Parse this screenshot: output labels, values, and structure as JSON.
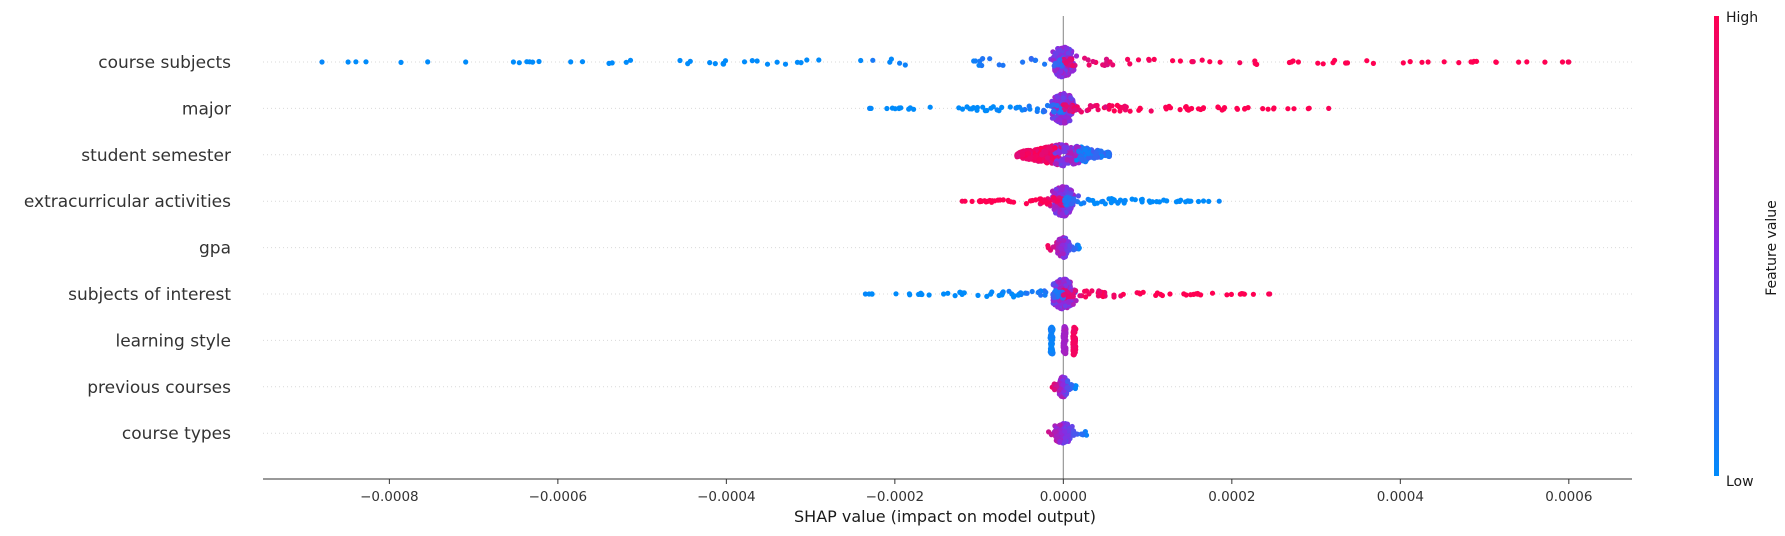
{
  "chart_data": {
    "type": "scatter",
    "subtype": "shap-beeswarm",
    "title": "",
    "xlabel": "SHAP value (impact on model output)",
    "xlim": [
      -0.00095,
      0.000675
    ],
    "x_ticks": [
      -0.0008,
      -0.0006,
      -0.0004,
      -0.0002,
      0.0,
      0.0002,
      0.0004,
      0.0006
    ],
    "x_tick_labels": [
      "−0.0008",
      "−0.0006",
      "−0.0004",
      "−0.0002",
      "0.0000",
      "0.0002",
      "0.0004",
      "0.0006"
    ],
    "features": [
      "course subjects",
      "major",
      "student semester",
      "extracurricular activities",
      "gpa",
      "subjects of interest",
      "learning style",
      "previous courses",
      "course types"
    ],
    "feature_spread": [
      {
        "name": "course subjects",
        "min": -0.00088,
        "max": 0.0006,
        "dense_core": [
          -1e-05,
          1e-05
        ]
      },
      {
        "name": "major",
        "min": -0.00023,
        "max": 0.000315,
        "dense_core": [
          -5e-06,
          5e-06
        ]
      },
      {
        "name": "student semester",
        "min": -5.5e-05,
        "max": 5.5e-05,
        "dense_core": [
          -5.5e-05,
          5.5e-05
        ]
      },
      {
        "name": "extracurricular activities",
        "min": -0.00012,
        "max": 0.000185,
        "dense_core": [
          -5e-06,
          5e-06
        ]
      },
      {
        "name": "gpa",
        "min": -2e-05,
        "max": 2e-05,
        "dense_core": [
          -5e-06,
          5e-06
        ]
      },
      {
        "name": "subjects of interest",
        "min": -0.000235,
        "max": 0.000245,
        "dense_core": [
          -3e-06,
          3e-06
        ]
      },
      {
        "name": "learning style",
        "min": -1.8e-05,
        "max": 1.5e-05,
        "dense_core": [
          -2e-06,
          2e-06
        ]
      },
      {
        "name": "previous courses",
        "min": -1.5e-05,
        "max": 1.5e-05,
        "dense_core": [
          -3e-06,
          3e-06
        ]
      },
      {
        "name": "course types",
        "min": -1.8e-05,
        "max": 3e-05,
        "dense_core": [
          -2e-06,
          2e-06
        ]
      }
    ],
    "colorbar": {
      "label": "Feature value",
      "high_label": "High",
      "low_label": "Low",
      "low_color": "#008bfb",
      "high_color": "#ff0052",
      "mid_color": "#8a2be2"
    },
    "grid": false,
    "zero_line": true
  }
}
